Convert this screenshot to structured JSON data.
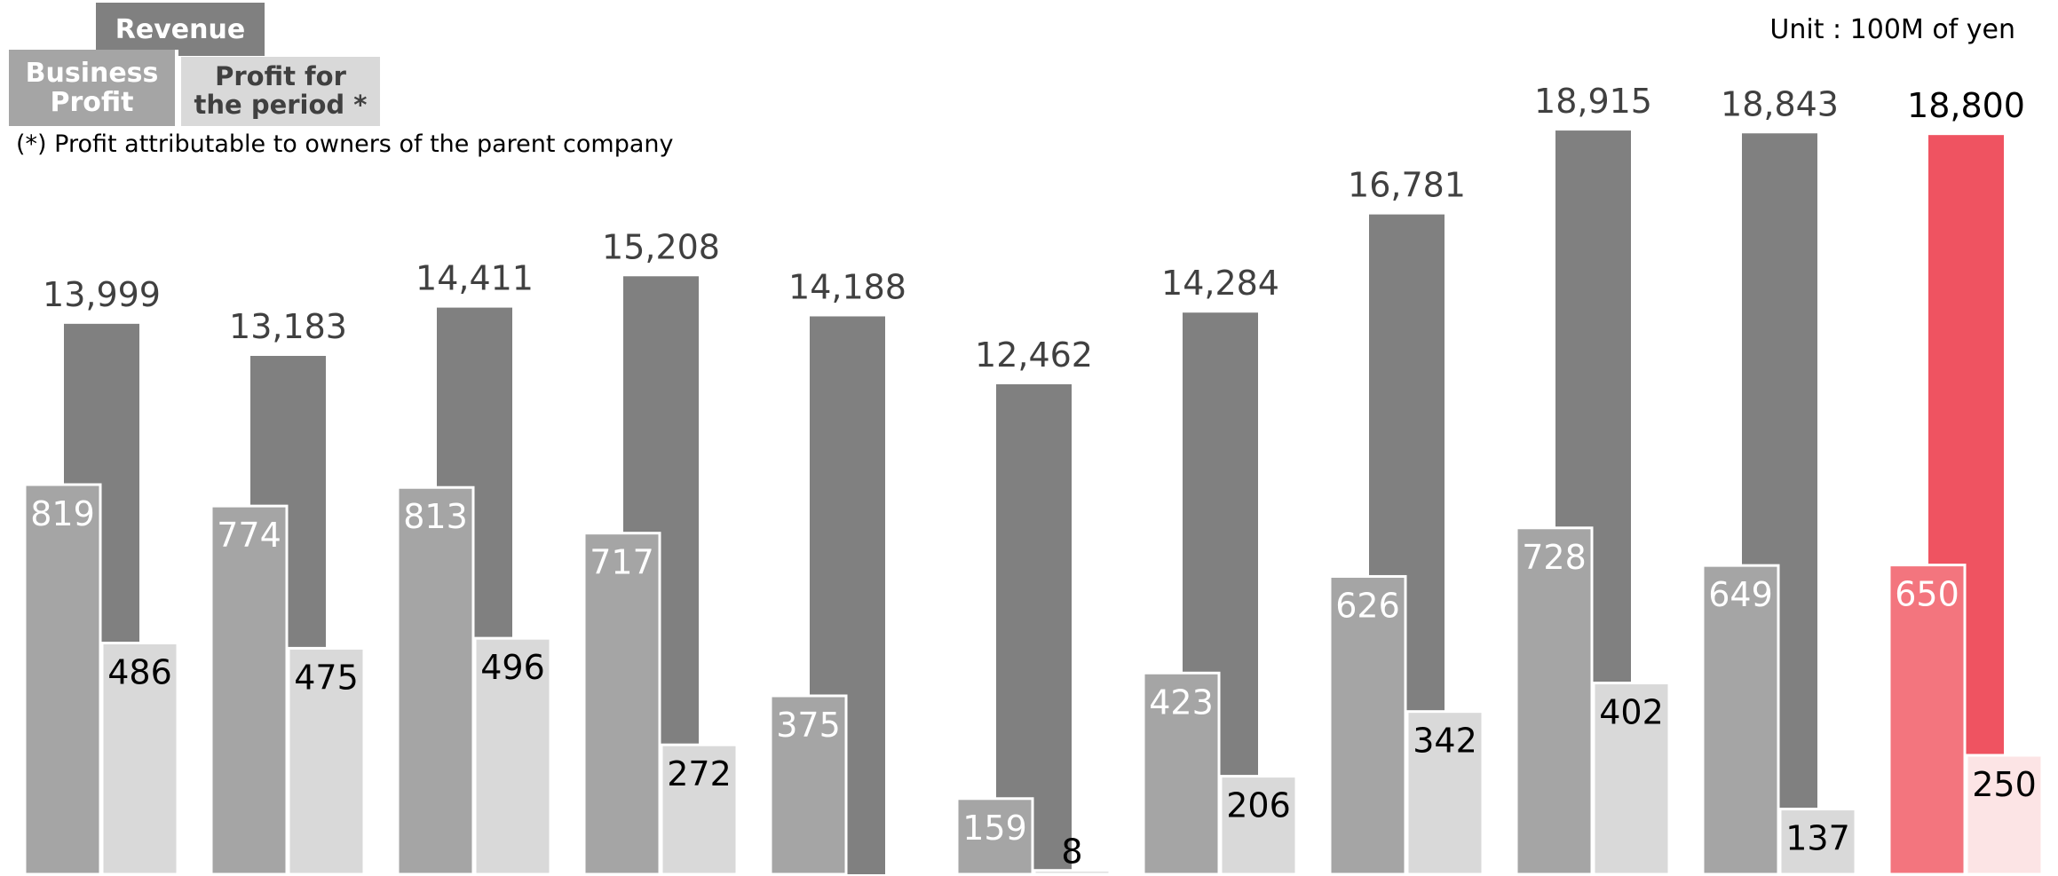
{
  "unit_label": "Unit : 100M of yen",
  "footnote": "(*) Profit attributable to owners of the parent company",
  "legend": {
    "revenue": "Revenue",
    "business_profit": "Business Profit",
    "profit_for_period": "Profit for the period *"
  },
  "colors": {
    "revenue": "#808080",
    "business_profit": "#a5a5a5",
    "profit_for_period": "#d9d9d9",
    "highlight_revenue": "#ef5361",
    "highlight_business_profit": "#f3757e",
    "highlight_profit_for_period": "#fce4e5"
  },
  "chart_data": {
    "type": "bar",
    "categories": [
      "",
      "",
      "",
      "",
      "",
      "",
      "",
      "",
      "",
      "",
      ""
    ],
    "series": [
      {
        "name": "Revenue",
        "values": [
          13999,
          13183,
          14411,
          15208,
          14188,
          12462,
          14284,
          16781,
          18915,
          18843,
          18800
        ]
      },
      {
        "name": "Business Profit",
        "values": [
          819,
          774,
          813,
          717,
          375,
          159,
          423,
          626,
          728,
          649,
          650
        ]
      },
      {
        "name": "Profit for the period *",
        "values": [
          486,
          475,
          496,
          272,
          null,
          8,
          206,
          342,
          402,
          137,
          250
        ]
      }
    ],
    "value_labels": {
      "revenue": [
        "13,999",
        "13,183",
        "14,411",
        "15,208",
        "14,188",
        "12,462",
        "14,284",
        "16,781",
        "18,915",
        "18,843",
        "18,800"
      ],
      "business_profit": [
        "819",
        "774",
        "813",
        "717",
        "375",
        "159",
        "423",
        "626",
        "728",
        "649",
        "650"
      ],
      "profit_for_period": [
        "486",
        "475",
        "496",
        "272",
        "",
        "8",
        "206",
        "342",
        "402",
        "137",
        "250"
      ]
    },
    "highlight_index": 10,
    "grid": false,
    "legend_position": "top-left"
  }
}
